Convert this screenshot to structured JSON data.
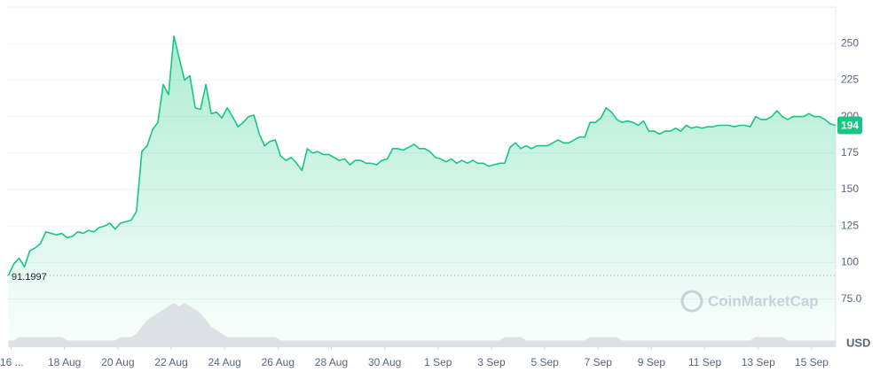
{
  "chart_data": {
    "type": "area",
    "currency_label": "USD",
    "watermark": "CoinMarketCap",
    "xlim": [
      15.85,
      46.9
    ],
    "xticks": [
      {
        "value": 16,
        "label": "16 ..."
      },
      {
        "value": 18,
        "label": "18 Aug"
      },
      {
        "value": 20,
        "label": "20 Aug"
      },
      {
        "value": 22,
        "label": "22 Aug"
      },
      {
        "value": 24,
        "label": "24 Aug"
      },
      {
        "value": 26,
        "label": "26 Aug"
      },
      {
        "value": 28,
        "label": "28 Aug"
      },
      {
        "value": 30,
        "label": "30 Aug"
      },
      {
        "value": 32,
        "label": "1 Sep"
      },
      {
        "value": 34,
        "label": "3 Sep"
      },
      {
        "value": 36,
        "label": "5 Sep"
      },
      {
        "value": 38,
        "label": "7 Sep"
      },
      {
        "value": 40,
        "label": "9 Sep"
      },
      {
        "value": 42,
        "label": "11 Sep"
      },
      {
        "value": 44,
        "label": "13 Sep"
      },
      {
        "value": 46,
        "label": "15 Sep"
      }
    ],
    "ylim": [
      42,
      275
    ],
    "yticks": [
      {
        "value": 75,
        "label": "75.0"
      },
      100,
      125,
      150,
      175,
      200,
      225,
      250
    ],
    "y2lim": [
      0,
      100
    ],
    "grid": true,
    "x": [
      15.9,
      16.1,
      16.3,
      16.5,
      16.7,
      16.9,
      17.1,
      17.3,
      17.5,
      17.7,
      17.9,
      18.1,
      18.3,
      18.5,
      18.7,
      18.9,
      19.1,
      19.3,
      19.5,
      19.7,
      19.9,
      20.1,
      20.3,
      20.5,
      20.7,
      20.9,
      21.1,
      21.3,
      21.5,
      21.7,
      21.9,
      22.1,
      22.3,
      22.5,
      22.7,
      22.9,
      23.1,
      23.3,
      23.5,
      23.7,
      23.9,
      24.1,
      24.3,
      24.5,
      24.7,
      24.9,
      25.1,
      25.3,
      25.5,
      25.7,
      25.9,
      26.1,
      26.3,
      26.5,
      26.7,
      26.9,
      27.1,
      27.3,
      27.5,
      27.7,
      27.9,
      28.1,
      28.3,
      28.5,
      28.7,
      28.9,
      29.1,
      29.3,
      29.5,
      29.7,
      29.9,
      30.1,
      30.3,
      30.5,
      30.7,
      30.9,
      31.1,
      31.3,
      31.5,
      31.7,
      31.9,
      32.1,
      32.3,
      32.5,
      32.7,
      32.9,
      33.1,
      33.3,
      33.5,
      33.7,
      33.9,
      34.1,
      34.3,
      34.5,
      34.7,
      34.9,
      35.1,
      35.3,
      35.5,
      35.7,
      35.9,
      36.1,
      36.3,
      36.5,
      36.7,
      36.9,
      37.1,
      37.3,
      37.5,
      37.7,
      37.9,
      38.1,
      38.3,
      38.5,
      38.7,
      38.9,
      39.1,
      39.3,
      39.5,
      39.7,
      39.9,
      40.1,
      40.3,
      40.5,
      40.7,
      40.9,
      41.1,
      41.3,
      41.5,
      41.7,
      41.9,
      42.1,
      42.3,
      42.5,
      42.7,
      42.9,
      43.1,
      43.3,
      43.5,
      43.7,
      43.9,
      44.1,
      44.3,
      44.5,
      44.7,
      44.9,
      45.1,
      45.3,
      45.5,
      45.7,
      45.9,
      46.1,
      46.3,
      46.5,
      46.7,
      46.9
    ],
    "series": [
      {
        "color": "#16c784",
        "values": [
          91.1997,
          99,
          103,
          97,
          108,
          110,
          113,
          121,
          120,
          119,
          120,
          117,
          118,
          121,
          120,
          122,
          121,
          124,
          125,
          127,
          123,
          127,
          128,
          129,
          135,
          176,
          180,
          191,
          196,
          222,
          215,
          255,
          240,
          225,
          228,
          206,
          205,
          222,
          202,
          203,
          199,
          206,
          200,
          193,
          196,
          200,
          201,
          188,
          180,
          183,
          184,
          173,
          170,
          172,
          168,
          163,
          178,
          175,
          176,
          174,
          174,
          172,
          170,
          171,
          167,
          170,
          170,
          168,
          168,
          167,
          170,
          171,
          178,
          178,
          177,
          179,
          181,
          178,
          178,
          176,
          172,
          171,
          169,
          171,
          168,
          170,
          168,
          170,
          168,
          168,
          166,
          167,
          168,
          168,
          179,
          182,
          178,
          180,
          178,
          180,
          180,
          180,
          182,
          184,
          182,
          182,
          184,
          186,
          186,
          196,
          196,
          199,
          206,
          203,
          198,
          196,
          197,
          196,
          194,
          197,
          190,
          190,
          188,
          190,
          190,
          192,
          190,
          194,
          192,
          193,
          192,
          193,
          193,
          194,
          194,
          194,
          193,
          194,
          194,
          193,
          200,
          198,
          198,
          200,
          204,
          200,
          198,
          200,
          200,
          200,
          202,
          200,
          200,
          198,
          195,
          194
        ]
      },
      {
        "color": "#d6dae1",
        "axis": "y2",
        "values": [
          2,
          2,
          3,
          3,
          3,
          3,
          3,
          3,
          3,
          3,
          3,
          2,
          2,
          2,
          2,
          2,
          2,
          2,
          2,
          2,
          2,
          3,
          3,
          3,
          4,
          6,
          8,
          9,
          10,
          11,
          12,
          13,
          12,
          13,
          12,
          11,
          10,
          8,
          6,
          5,
          4,
          3,
          3,
          3,
          3,
          3,
          3,
          3,
          3,
          3,
          3,
          2,
          2,
          2,
          2,
          2,
          2,
          2,
          2,
          2,
          2,
          2,
          2,
          2,
          2,
          2,
          2,
          2,
          2,
          2,
          2,
          2,
          2,
          2,
          2,
          2,
          2,
          2,
          2,
          2,
          2,
          2,
          2,
          2,
          2,
          2,
          2,
          2,
          2,
          2,
          2,
          2,
          2,
          3,
          3,
          3,
          3,
          2,
          2,
          2,
          2,
          2,
          2,
          2,
          2,
          2,
          2,
          2,
          2,
          3,
          3,
          3,
          3,
          3,
          3,
          2,
          2,
          2,
          2,
          2,
          2,
          2,
          2,
          2,
          2,
          2,
          2,
          2,
          2,
          2,
          2,
          2,
          2,
          2,
          2,
          2,
          2,
          2,
          2,
          2,
          3,
          3,
          3,
          3,
          3,
          3,
          2,
          2,
          2,
          2,
          2,
          2,
          2,
          2,
          2,
          2
        ]
      }
    ]
  }
}
